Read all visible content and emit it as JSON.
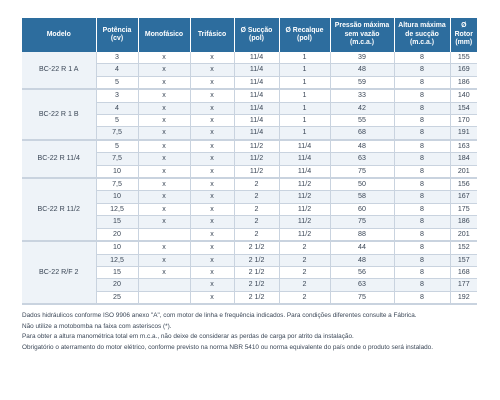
{
  "table": {
    "headers": [
      "Modelo",
      "Potência (cv)",
      "Monofásico",
      "Trifásico",
      "Ø Sucção (pol)",
      "Ø Recalque (pol)",
      "Pressão máxima sem vazão (m.c.a.)",
      "Altura máxima de sucção (m.c.a.)",
      "Ø Rotor (mm)"
    ],
    "groups": [
      {
        "model": "BC-22 R 1 A",
        "rows": [
          [
            "3",
            "x",
            "x",
            "11/4",
            "1",
            "39",
            "8",
            "155"
          ],
          [
            "4",
            "x",
            "x",
            "11/4",
            "1",
            "48",
            "8",
            "169"
          ],
          [
            "5",
            "x",
            "x",
            "11/4",
            "1",
            "59",
            "8",
            "186"
          ]
        ]
      },
      {
        "model": "BC-22 R 1 B",
        "rows": [
          [
            "3",
            "x",
            "x",
            "11/4",
            "1",
            "33",
            "8",
            "140"
          ],
          [
            "4",
            "x",
            "x",
            "11/4",
            "1",
            "42",
            "8",
            "154"
          ],
          [
            "5",
            "x",
            "x",
            "11/4",
            "1",
            "55",
            "8",
            "170"
          ],
          [
            "7,5",
            "x",
            "x",
            "11/4",
            "1",
            "68",
            "8",
            "191"
          ]
        ]
      },
      {
        "model": "BC-22 R 11/4",
        "rows": [
          [
            "5",
            "x",
            "x",
            "11/2",
            "11/4",
            "48",
            "8",
            "163"
          ],
          [
            "7,5",
            "x",
            "x",
            "11/2",
            "11/4",
            "63",
            "8",
            "184"
          ],
          [
            "10",
            "x",
            "x",
            "11/2",
            "11/4",
            "75",
            "8",
            "201"
          ]
        ]
      },
      {
        "model": "BC-22 R 11/2",
        "rows": [
          [
            "7,5",
            "x",
            "x",
            "2",
            "11/2",
            "50",
            "8",
            "156"
          ],
          [
            "10",
            "x",
            "x",
            "2",
            "11/2",
            "58",
            "8",
            "167"
          ],
          [
            "12,5",
            "x",
            "x",
            "2",
            "11/2",
            "60",
            "8",
            "175"
          ],
          [
            "15",
            "x",
            "x",
            "2",
            "11/2",
            "75",
            "8",
            "186"
          ],
          [
            "20",
            "",
            "x",
            "2",
            "11/2",
            "88",
            "8",
            "201"
          ]
        ]
      },
      {
        "model": "BC-22 R/F 2",
        "rows": [
          [
            "10",
            "x",
            "x",
            "2 1/2",
            "2",
            "44",
            "8",
            "152"
          ],
          [
            "12,5",
            "x",
            "x",
            "2 1/2",
            "2",
            "48",
            "8",
            "157"
          ],
          [
            "15",
            "x",
            "x",
            "2 1/2",
            "2",
            "56",
            "8",
            "168"
          ],
          [
            "20",
            "",
            "x",
            "2 1/2",
            "2",
            "63",
            "8",
            "177"
          ],
          [
            "25",
            "",
            "x",
            "2 1/2",
            "2",
            "75",
            "8",
            "192"
          ]
        ]
      }
    ]
  },
  "notes": [
    "Dados hidráulicos conforme ISO 9906 anexo \"A\", com motor de linha e frequência indicados. Para condições diferentes consulte a Fábrica.",
    "Não utilize a motobomba na faixa com asteriscos (*).",
    "Para obter a altura manométrica total em m.c.a., não deixe de considerar as perdas de carga por atrito da instalação.",
    "Obrigatório o aterramento do motor elétrico, conforme previsto na norma NBR 5410 ou norma equivalente do país onde o produto será instalado."
  ],
  "colors": {
    "header_bg": "#2d6d9e",
    "alt_row": "#eef3f8",
    "grid": "#c9d3df"
  }
}
